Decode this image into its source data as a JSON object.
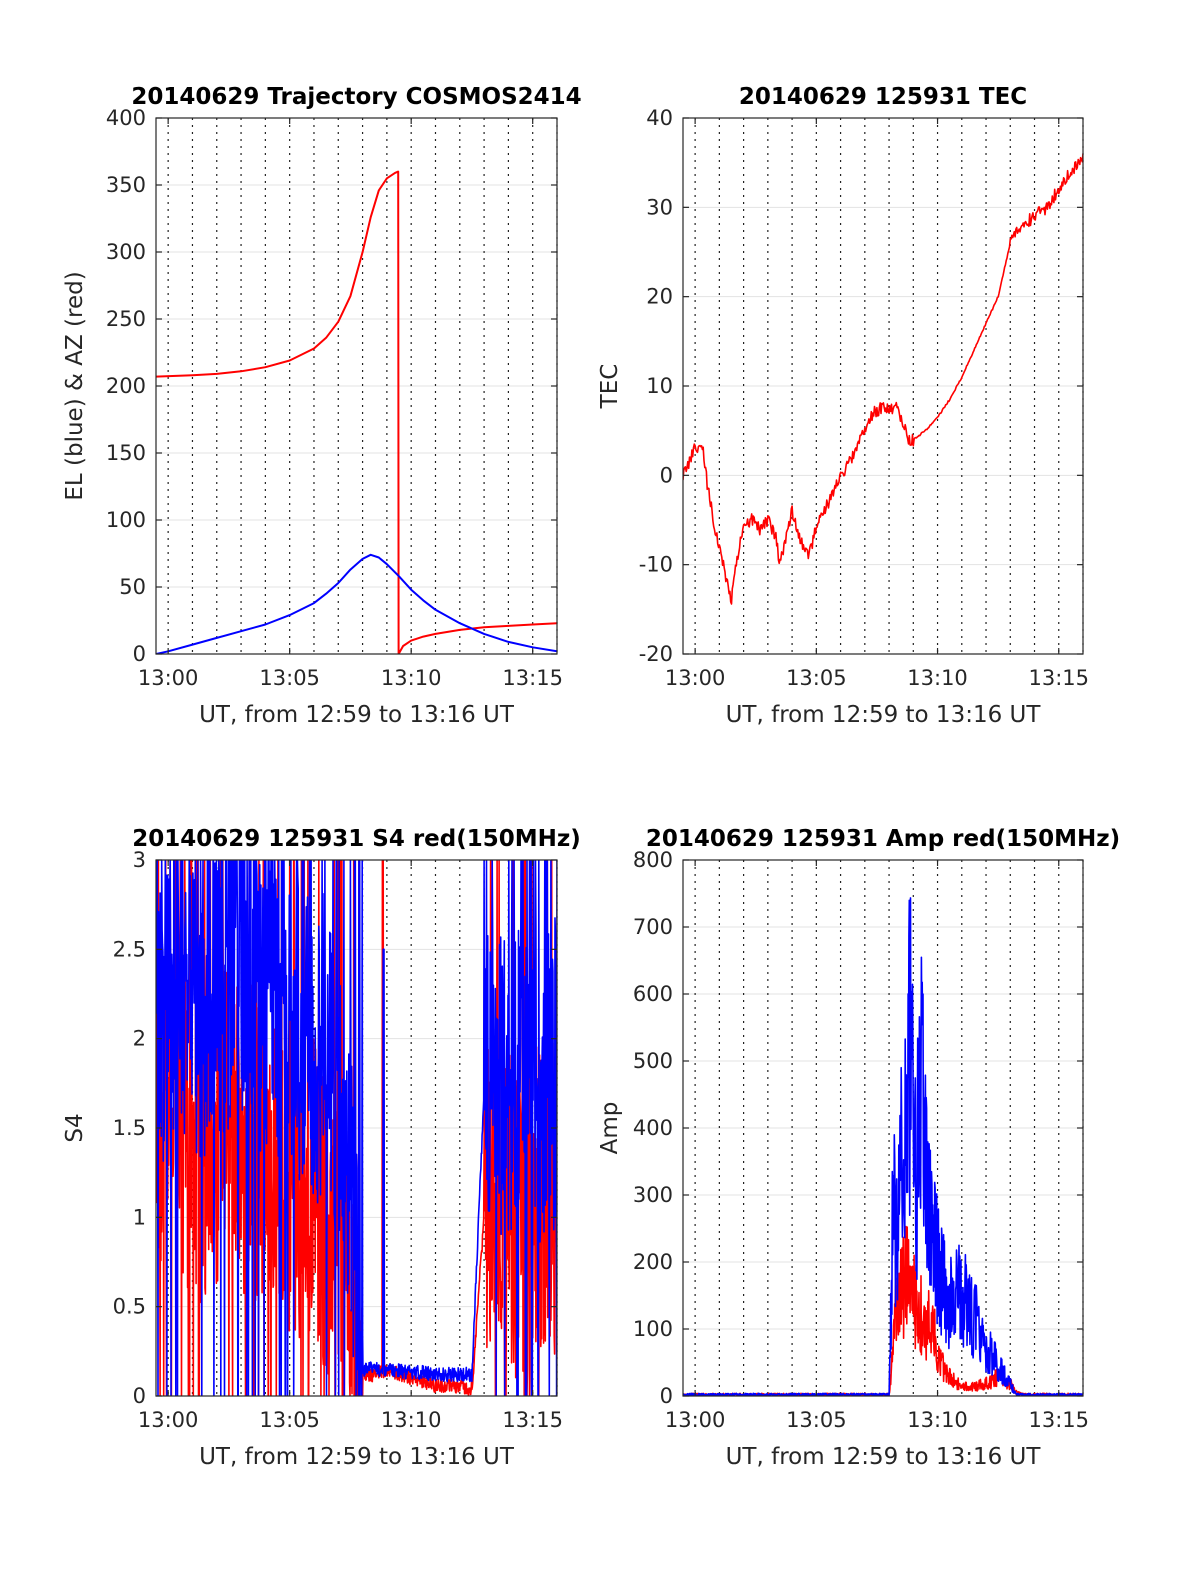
{
  "chart_data": [
    {
      "type": "line",
      "title": "20140629 Trajectory COSMOS2414",
      "xlabel": "UT, from 12:59 to 13:16 UT",
      "ylabel": "EL (blue) & AZ (red)",
      "xlim": [
        "12:59:30",
        "13:16:00"
      ],
      "ylim": [
        0,
        400
      ],
      "xticks": [
        "13:00",
        "13:05",
        "13:10",
        "13:15"
      ],
      "yticks": [
        "0",
        "50",
        "100",
        "150",
        "200",
        "250",
        "300",
        "350",
        "400"
      ],
      "grid": "on",
      "series": [
        {
          "color": "#ff0000",
          "x": [
            "12:59:30",
            "13:01:00",
            "13:02:00",
            "13:03:00",
            "13:04:00",
            "13:05:00",
            "13:06:00",
            "13:06:30",
            "13:07:00",
            "13:07:30",
            "13:08:00",
            "13:08:20",
            "13:08:40",
            "13:09:00",
            "13:09:20",
            "13:09:28",
            "13:09:29",
            "13:09:40",
            "13:10:00",
            "13:10:30",
            "13:11:00",
            "13:12:00",
            "13:13:00",
            "13:14:00",
            "13:15:00",
            "13:16:00"
          ],
          "values": [
            207,
            208,
            209,
            211,
            214,
            219,
            228,
            236,
            248,
            267,
            300,
            326,
            346,
            355,
            359,
            360,
            0,
            6,
            10,
            13,
            15,
            18,
            20,
            21,
            22,
            23
          ]
        },
        {
          "color": "#0000ff",
          "x": [
            "12:59:30",
            "13:00:00",
            "13:01:00",
            "13:02:00",
            "13:03:00",
            "13:04:00",
            "13:05:00",
            "13:06:00",
            "13:06:30",
            "13:07:00",
            "13:07:30",
            "13:08:00",
            "13:08:20",
            "13:08:40",
            "13:09:00",
            "13:09:30",
            "13:10:00",
            "13:10:30",
            "13:11:00",
            "13:12:00",
            "13:13:00",
            "13:14:00",
            "13:15:00",
            "13:16:00"
          ],
          "values": [
            0,
            2,
            7,
            12,
            17,
            22,
            29,
            38,
            45,
            53,
            63,
            71,
            74,
            72,
            67,
            58,
            48,
            40,
            33,
            23,
            15,
            9,
            5,
            2
          ]
        }
      ]
    },
    {
      "type": "line",
      "title": "20140629 125931 TEC",
      "xlabel": "UT, from 12:59 to 13:16 UT",
      "ylabel": "TEC",
      "xlim": [
        "12:59:30",
        "13:16:00"
      ],
      "ylim": [
        -20,
        40
      ],
      "xticks": [
        "13:00",
        "13:05",
        "13:10",
        "13:15"
      ],
      "yticks": [
        "-20",
        "-10",
        "0",
        "10",
        "20",
        "30",
        "40"
      ],
      "grid": "on",
      "series": [
        {
          "color": "#ff0000",
          "x": [
            "12:59:30",
            "12:59:50",
            "13:00:00",
            "13:00:20",
            "13:00:30",
            "13:00:45",
            "13:01:00",
            "13:01:20",
            "13:01:30",
            "13:01:40",
            "13:02:00",
            "13:02:20",
            "13:02:40",
            "13:03:00",
            "13:03:20",
            "13:03:30",
            "13:03:45",
            "13:04:00",
            "13:04:20",
            "13:04:40",
            "13:05:00",
            "13:05:20",
            "13:05:40",
            "13:06:00",
            "13:06:30",
            "13:07:00",
            "13:07:20",
            "13:07:40",
            "13:08:00",
            "13:08:20",
            "13:08:40",
            "13:08:50",
            "13:09:00",
            "13:09:30",
            "13:10:00",
            "13:10:30",
            "13:11:00",
            "13:11:30",
            "13:12:00",
            "13:12:30",
            "13:13:00",
            "13:13:30",
            "13:14:00",
            "13:14:30",
            "13:15:00",
            "13:15:30",
            "13:16:00"
          ],
          "values": [
            0,
            2,
            3,
            3,
            -1,
            -5,
            -8,
            -12,
            -14,
            -10,
            -6,
            -5,
            -6,
            -5,
            -7,
            -10,
            -7,
            -4,
            -7,
            -9,
            -6,
            -4,
            -2,
            0,
            2,
            5,
            7,
            7.5,
            7.5,
            7.5,
            5,
            4,
            4,
            5,
            6.5,
            8.5,
            11,
            14,
            17,
            20,
            26,
            28,
            29,
            30,
            32,
            34,
            35.5
          ]
        }
      ]
    },
    {
      "type": "line",
      "title": "20140629 125931 S4 red(150MHz)",
      "xlabel": "UT, from 12:59 to 13:16 UT",
      "ylabel": "S4",
      "xlim": [
        "12:59:30",
        "13:16:00"
      ],
      "ylim": [
        0,
        3
      ],
      "xticks": [
        "13:00",
        "13:05",
        "13:10",
        "13:15"
      ],
      "yticks": [
        "0",
        "0.5",
        "1",
        "1.5",
        "2",
        "2.5",
        "3"
      ],
      "grid": "on",
      "series": [
        {
          "color": "#ff0000",
          "x": [
            "12:59:30",
            "13:00:30",
            "13:01:30",
            "13:02:30",
            "13:03:30",
            "13:04:30",
            "13:05:30",
            "13:06:30",
            "13:07:00",
            "13:07:30",
            "13:08:00",
            "13:08:30",
            "13:09:00",
            "13:09:30",
            "13:10:00",
            "13:10:30",
            "13:11:00",
            "13:11:30",
            "13:12:00",
            "13:12:30",
            "13:13:00",
            "13:13:30",
            "13:14:00",
            "13:14:30",
            "13:15:00",
            "13:15:30",
            "13:16:00"
          ],
          "values": [
            1.5,
            1.5,
            1.4,
            1.5,
            1.4,
            1.3,
            1.2,
            1.0,
            0.9,
            0.6,
            0.12,
            0.12,
            0.15,
            0.12,
            0.1,
            0.08,
            0.06,
            0.06,
            0.05,
            0.04,
            1.0,
            1.2,
            1.1,
            0.9,
            1.0,
            1.2,
            1.1
          ]
        },
        {
          "color": "#0000ff",
          "x": [
            "12:59:30",
            "13:00:30",
            "13:01:30",
            "13:02:30",
            "13:03:30",
            "13:04:30",
            "13:05:30",
            "13:06:30",
            "13:07:00",
            "13:07:30",
            "13:08:00",
            "13:08:30",
            "13:09:00",
            "13:09:30",
            "13:10:00",
            "13:10:30",
            "13:11:00",
            "13:11:30",
            "13:12:00",
            "13:12:30",
            "13:13:00",
            "13:13:30",
            "13:14:00",
            "13:14:30",
            "13:15:00",
            "13:15:30",
            "13:16:00"
          ],
          "values": [
            2.0,
            2.3,
            2.2,
            2.4,
            2.3,
            2.2,
            2.1,
            1.9,
            1.7,
            1.3,
            0.15,
            0.15,
            0.15,
            0.14,
            0.13,
            0.13,
            0.12,
            0.12,
            0.12,
            0.12,
            1.7,
            1.8,
            1.7,
            1.9,
            1.8,
            1.7,
            1.8
          ]
        }
      ]
    },
    {
      "type": "line",
      "title": "20140629 125931 Amp red(150MHz)",
      "xlabel": "UT, from 12:59 to 13:16 UT",
      "ylabel": "Amp",
      "xlim": [
        "12:59:30",
        "13:16:00"
      ],
      "ylim": [
        0,
        800
      ],
      "xticks": [
        "13:00",
        "13:05",
        "13:10",
        "13:15"
      ],
      "yticks": [
        "0",
        "100",
        "200",
        "300",
        "400",
        "500",
        "600",
        "700",
        "800"
      ],
      "grid": "on",
      "series": [
        {
          "color": "#ff0000",
          "x": [
            "12:59:30",
            "13:08:00",
            "13:08:15",
            "13:08:30",
            "13:08:45",
            "13:09:00",
            "13:09:15",
            "13:09:30",
            "13:09:45",
            "13:10:00",
            "13:10:30",
            "13:11:00",
            "13:11:30",
            "13:12:00",
            "13:12:30",
            "13:13:00",
            "13:13:15",
            "13:13:30",
            "13:16:00"
          ],
          "values": [
            0,
            0,
            120,
            170,
            200,
            150,
            160,
            90,
            140,
            60,
            30,
            15,
            15,
            20,
            30,
            20,
            5,
            0,
            0
          ]
        },
        {
          "color": "#0000ff",
          "x": [
            "12:59:30",
            "13:08:00",
            "13:08:10",
            "13:08:20",
            "13:08:40",
            "13:08:50",
            "13:09:00",
            "13:09:10",
            "13:09:20",
            "13:09:40",
            "13:10:00",
            "13:10:30",
            "13:11:00",
            "13:11:20",
            "13:11:40",
            "13:12:00",
            "13:12:20",
            "13:12:40",
            "13:13:00",
            "13:13:15",
            "13:16:00"
          ],
          "values": [
            0,
            0,
            300,
            250,
            450,
            600,
            420,
            380,
            500,
            300,
            220,
            150,
            170,
            130,
            120,
            80,
            60,
            40,
            20,
            0,
            0
          ]
        }
      ]
    }
  ]
}
